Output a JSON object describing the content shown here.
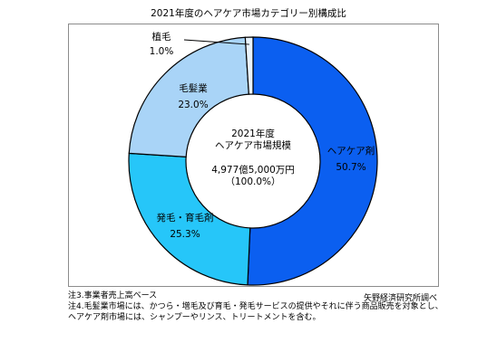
{
  "chart_data": {
    "type": "donut",
    "title": "2021年度のヘアケア市場カテゴリー別構成比",
    "center_text": [
      "2021年度",
      "ヘアケア市場規模",
      "4,977億5,000万円",
      "（100.0%）"
    ],
    "slices": [
      {
        "name": "ヘアケア剤",
        "value": 50.7,
        "label": "50.7%",
        "color": "#0b5ff0"
      },
      {
        "name": "発毛・育毛剤",
        "value": 25.3,
        "label": "25.3%",
        "color": "#26c6f9"
      },
      {
        "name": "毛髪業",
        "value": 23.0,
        "label": "23.0%",
        "color": "#a9d4f7"
      },
      {
        "name": "植毛",
        "value": 1.0,
        "label": "1.0%",
        "color": "#eaf4fd"
      }
    ]
  },
  "notes": {
    "note3": "注3.事業者売上高ベース",
    "source": "矢野経済研究所調べ",
    "note4_line1": "注4.毛髪業市場には、かつら・増毛及び育毛・発毛サービスの提供やそれに伴う商品販売を対象とし、",
    "note4_line2": "ヘアケア剤市場には、シャンプーやリンス、トリートメントを含む。"
  }
}
